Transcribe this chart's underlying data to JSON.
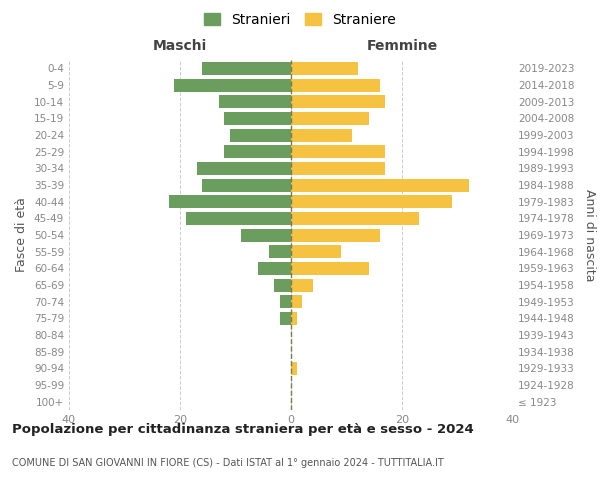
{
  "age_groups": [
    "100+",
    "95-99",
    "90-94",
    "85-89",
    "80-84",
    "75-79",
    "70-74",
    "65-69",
    "60-64",
    "55-59",
    "50-54",
    "45-49",
    "40-44",
    "35-39",
    "30-34",
    "25-29",
    "20-24",
    "15-19",
    "10-14",
    "5-9",
    "0-4"
  ],
  "birth_years": [
    "≤ 1923",
    "1924-1928",
    "1929-1933",
    "1934-1938",
    "1939-1943",
    "1944-1948",
    "1949-1953",
    "1954-1958",
    "1959-1963",
    "1964-1968",
    "1969-1973",
    "1974-1978",
    "1979-1983",
    "1984-1988",
    "1989-1993",
    "1994-1998",
    "1999-2003",
    "2004-2008",
    "2009-2013",
    "2014-2018",
    "2019-2023"
  ],
  "maschi": [
    0,
    0,
    0,
    0,
    0,
    2,
    2,
    3,
    6,
    4,
    9,
    19,
    22,
    16,
    17,
    12,
    11,
    12,
    13,
    21,
    16
  ],
  "femmine": [
    0,
    0,
    1,
    0,
    0,
    1,
    2,
    4,
    14,
    9,
    16,
    23,
    29,
    32,
    17,
    17,
    11,
    14,
    17,
    16,
    12
  ],
  "color_maschi": "#6b9e5e",
  "color_femmine": "#f5c242",
  "color_center_line": "#7a7a50",
  "title": "Popolazione per cittadinanza straniera per età e sesso - 2024",
  "subtitle": "COMUNE DI SAN GIOVANNI IN FIORE (CS) - Dati ISTAT al 1° gennaio 2024 - TUTTITALIA.IT",
  "xlabel_left": "Maschi",
  "xlabel_right": "Femmine",
  "ylabel_left": "Fasce di età",
  "ylabel_right": "Anni di nascita",
  "legend_stranieri": "Stranieri",
  "legend_straniere": "Straniere",
  "xlim": 40,
  "background_color": "#ffffff",
  "grid_color": "#cccccc"
}
